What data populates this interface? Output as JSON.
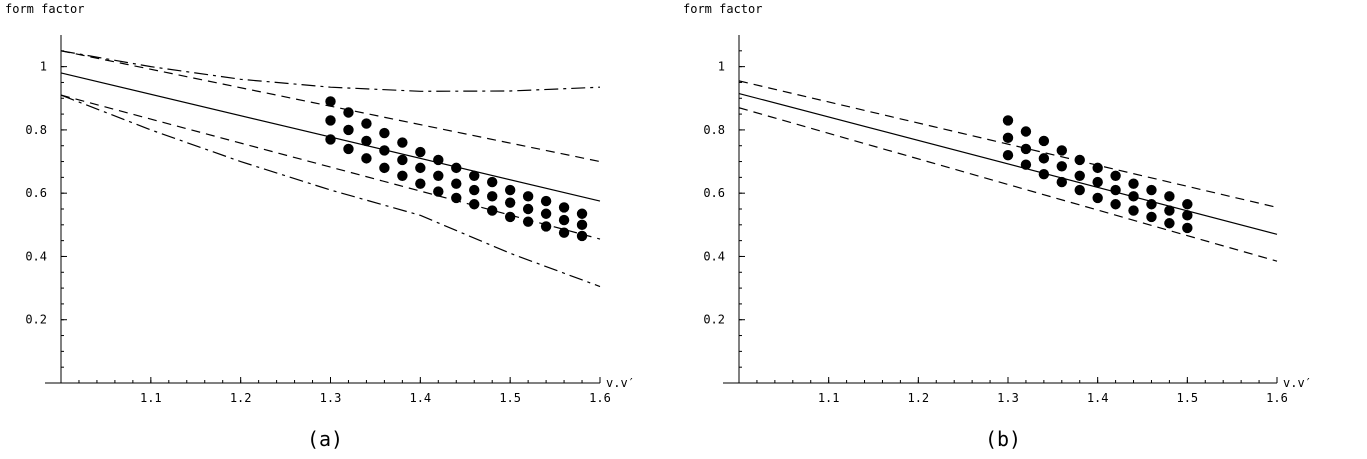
{
  "chart_data": [
    {
      "type": "scatter",
      "panel_label": "(a)",
      "ylabel": "form factor",
      "xlabel": "v.v′",
      "xlim": [
        1.0,
        1.6
      ],
      "ylim": [
        0.0,
        1.1
      ],
      "xticks": [
        1.1,
        1.2,
        1.3,
        1.4,
        1.5,
        1.6
      ],
      "yticks": [
        0.2,
        0.4,
        0.6,
        0.8,
        1.0
      ],
      "xtick_labels": [
        "1.1",
        "1.2",
        "1.3",
        "1.4",
        "1.5",
        "1.6"
      ],
      "ytick_labels": [
        "0.2",
        "0.4",
        "0.6",
        "0.8",
        "1"
      ],
      "grid": false,
      "points": [
        {
          "x": 1.3,
          "y": [
            0.77,
            0.83,
            0.89
          ]
        },
        {
          "x": 1.32,
          "y": [
            0.74,
            0.8,
            0.855
          ]
        },
        {
          "x": 1.34,
          "y": [
            0.71,
            0.765,
            0.82
          ]
        },
        {
          "x": 1.36,
          "y": [
            0.68,
            0.735,
            0.79
          ]
        },
        {
          "x": 1.38,
          "y": [
            0.655,
            0.705,
            0.76
          ]
        },
        {
          "x": 1.4,
          "y": [
            0.63,
            0.68,
            0.73
          ]
        },
        {
          "x": 1.42,
          "y": [
            0.605,
            0.655,
            0.705
          ]
        },
        {
          "x": 1.44,
          "y": [
            0.585,
            0.63,
            0.68
          ]
        },
        {
          "x": 1.46,
          "y": [
            0.565,
            0.61,
            0.655
          ]
        },
        {
          "x": 1.48,
          "y": [
            0.545,
            0.59,
            0.635
          ]
        },
        {
          "x": 1.5,
          "y": [
            0.525,
            0.57,
            0.61
          ]
        },
        {
          "x": 1.52,
          "y": [
            0.51,
            0.55,
            0.59
          ]
        },
        {
          "x": 1.54,
          "y": [
            0.495,
            0.535,
            0.575
          ]
        },
        {
          "x": 1.56,
          "y": [
            0.475,
            0.515,
            0.555
          ]
        },
        {
          "x": 1.58,
          "y": [
            0.465,
            0.5,
            0.535
          ]
        }
      ],
      "curves": [
        {
          "style": "solid",
          "x": [
            1.0,
            1.6
          ],
          "y": [
            0.98,
            0.575
          ]
        },
        {
          "style": "dashed",
          "x": [
            1.0,
            1.6
          ],
          "y": [
            1.05,
            0.7
          ]
        },
        {
          "style": "dashed",
          "x": [
            1.0,
            1.6
          ],
          "y": [
            0.91,
            0.455
          ]
        },
        {
          "style": "dashdot",
          "x": [
            1.0,
            1.1,
            1.2,
            1.3,
            1.4,
            1.5,
            1.6
          ],
          "y": [
            1.05,
            1.0,
            0.96,
            0.935,
            0.922,
            0.923,
            0.935
          ]
        },
        {
          "style": "dashdot",
          "x": [
            1.0,
            1.1,
            1.2,
            1.3,
            1.4,
            1.5,
            1.6
          ],
          "y": [
            0.91,
            0.8,
            0.7,
            0.61,
            0.53,
            0.41,
            0.305
          ]
        }
      ]
    },
    {
      "type": "scatter",
      "panel_label": "(b)",
      "ylabel": "form factor",
      "xlabel": "v.v′",
      "xlim": [
        1.0,
        1.6
      ],
      "ylim": [
        0.0,
        1.1
      ],
      "xticks": [
        1.1,
        1.2,
        1.3,
        1.4,
        1.5,
        1.6
      ],
      "yticks": [
        0.2,
        0.4,
        0.6,
        0.8,
        1.0
      ],
      "xtick_labels": [
        "1.1",
        "1.2",
        "1.3",
        "1.4",
        "1.5",
        "1.6"
      ],
      "ytick_labels": [
        "0.2",
        "0.4",
        "0.6",
        "0.8",
        "1"
      ],
      "grid": false,
      "points": [
        {
          "x": 1.3,
          "y": [
            0.72,
            0.775,
            0.83
          ]
        },
        {
          "x": 1.32,
          "y": [
            0.69,
            0.74,
            0.795
          ]
        },
        {
          "x": 1.34,
          "y": [
            0.66,
            0.71,
            0.765
          ]
        },
        {
          "x": 1.36,
          "y": [
            0.635,
            0.685,
            0.735
          ]
        },
        {
          "x": 1.38,
          "y": [
            0.61,
            0.655,
            0.705
          ]
        },
        {
          "x": 1.4,
          "y": [
            0.585,
            0.635,
            0.68
          ]
        },
        {
          "x": 1.42,
          "y": [
            0.565,
            0.61,
            0.655
          ]
        },
        {
          "x": 1.44,
          "y": [
            0.545,
            0.59,
            0.63
          ]
        },
        {
          "x": 1.46,
          "y": [
            0.525,
            0.565,
            0.61
          ]
        },
        {
          "x": 1.48,
          "y": [
            0.505,
            0.545,
            0.59
          ]
        },
        {
          "x": 1.5,
          "y": [
            0.49,
            0.53,
            0.565
          ]
        }
      ],
      "curves": [
        {
          "style": "solid",
          "x": [
            1.0,
            1.6
          ],
          "y": [
            0.915,
            0.47
          ]
        },
        {
          "style": "dashed",
          "x": [
            1.0,
            1.6
          ],
          "y": [
            0.955,
            0.555
          ]
        },
        {
          "style": "dashed",
          "x": [
            1.0,
            1.6
          ],
          "y": [
            0.87,
            0.385
          ]
        }
      ]
    }
  ]
}
